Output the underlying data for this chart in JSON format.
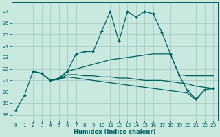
{
  "xlabel": "Humidex (Indice chaleur)",
  "xlim": [
    -0.5,
    23.5
  ],
  "ylim": [
    17.5,
    27.8
  ],
  "yticks": [
    18,
    19,
    20,
    21,
    22,
    23,
    24,
    25,
    26,
    27
  ],
  "xticks": [
    0,
    1,
    2,
    3,
    4,
    5,
    6,
    7,
    8,
    9,
    10,
    11,
    12,
    13,
    14,
    15,
    16,
    17,
    18,
    19,
    20,
    21,
    22,
    23
  ],
  "bg_color": "#c8e8e0",
  "grid_color": "#a0c8c0",
  "line_color": "#006060",
  "series": [
    {
      "x": [
        0,
        1,
        2,
        3,
        4,
        5,
        6,
        7,
        8,
        9,
        10,
        11,
        12,
        13,
        14,
        15,
        16,
        17,
        18,
        19,
        20,
        21,
        22,
        23
      ],
      "y": [
        18.4,
        19.7,
        21.8,
        21.6,
        21.0,
        21.2,
        21.8,
        23.3,
        23.5,
        23.5,
        25.3,
        27.0,
        24.4,
        27.0,
        26.5,
        27.0,
        26.8,
        25.2,
        23.3,
        21.5,
        20.1,
        19.4,
        20.2,
        20.3
      ],
      "marker": "D",
      "ms": 2.0,
      "lw": 0.9
    },
    {
      "x": [
        2,
        3,
        4,
        5,
        6,
        7,
        8,
        9,
        10,
        11,
        12,
        13,
        14,
        15,
        16,
        17,
        18,
        19,
        20,
        21,
        22,
        23
      ],
      "y": [
        21.8,
        21.6,
        21.0,
        21.1,
        21.8,
        22.0,
        22.2,
        22.4,
        22.6,
        22.8,
        22.9,
        23.0,
        23.1,
        23.2,
        23.3,
        23.3,
        23.3,
        21.5,
        21.4,
        21.4,
        21.4,
        21.4
      ],
      "marker": null,
      "ms": 0,
      "lw": 0.9
    },
    {
      "x": [
        2,
        3,
        4,
        5,
        6,
        7,
        8,
        9,
        10,
        11,
        12,
        13,
        14,
        15,
        16,
        17,
        18,
        19,
        20,
        21,
        22,
        23
      ],
      "y": [
        21.8,
        21.6,
        21.0,
        21.1,
        21.5,
        21.5,
        21.4,
        21.4,
        21.3,
        21.3,
        21.2,
        21.2,
        21.1,
        21.0,
        21.0,
        21.0,
        20.9,
        20.8,
        20.7,
        20.5,
        20.4,
        20.3
      ],
      "marker": null,
      "ms": 0,
      "lw": 0.9
    },
    {
      "x": [
        2,
        3,
        4,
        5,
        6,
        7,
        8,
        9,
        10,
        11,
        12,
        13,
        14,
        15,
        16,
        17,
        18,
        19,
        20,
        21,
        22,
        23
      ],
      "y": [
        21.8,
        21.6,
        21.0,
        21.1,
        21.3,
        21.2,
        21.1,
        21.0,
        20.9,
        20.8,
        20.7,
        20.6,
        20.5,
        20.4,
        20.3,
        20.2,
        20.1,
        20.0,
        19.9,
        19.3,
        20.2,
        20.3
      ],
      "marker": null,
      "ms": 0,
      "lw": 0.9
    }
  ],
  "xlabel_fontsize": 6.0,
  "tick_fontsize": 5.2
}
